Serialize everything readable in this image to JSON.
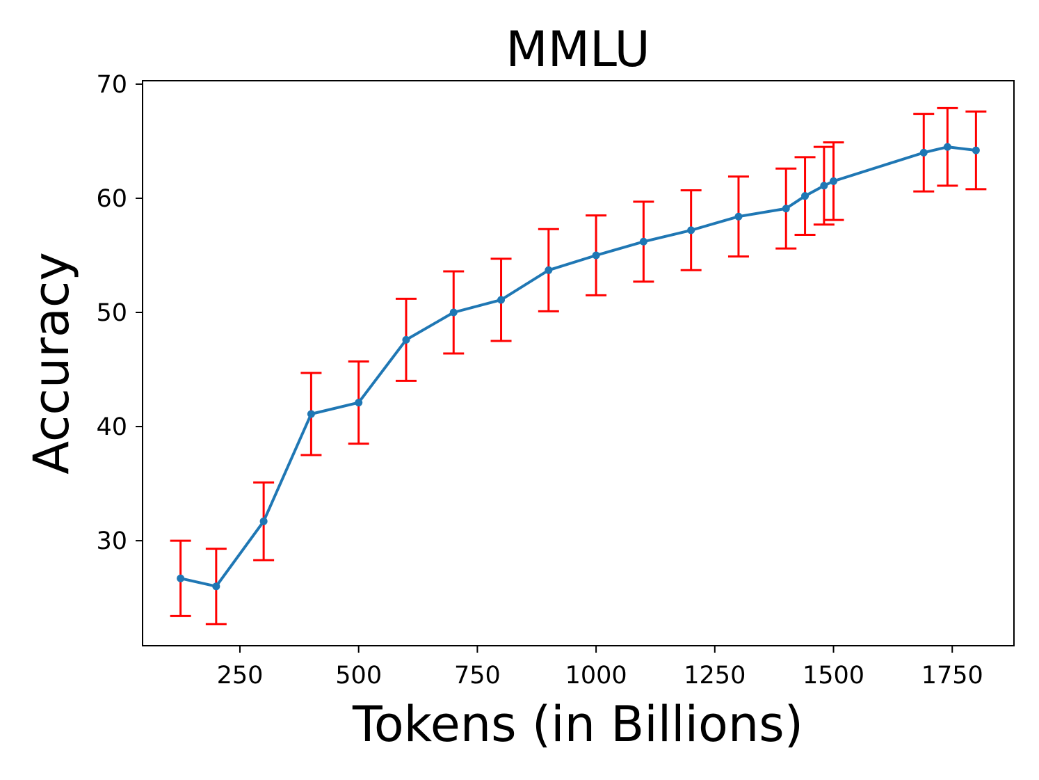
{
  "chart_data": {
    "type": "line",
    "title": "MMLU",
    "xlabel": "Tokens (in Billions)",
    "ylabel": "Accuracy",
    "xlim": [
      45,
      1880
    ],
    "ylim": [
      20.8,
      70.3
    ],
    "xticks": [
      250,
      500,
      750,
      1000,
      1250,
      1500,
      1750
    ],
    "yticks": [
      30,
      40,
      50,
      60,
      70
    ],
    "grid": false,
    "line_color": "#1f77b4",
    "error_color": "#ff0000",
    "series": [
      {
        "x": [
          125,
          200,
          300,
          400,
          500,
          600,
          700,
          800,
          900,
          1000,
          1100,
          1200,
          1300,
          1400,
          1440,
          1480,
          1500,
          1690,
          1740,
          1800
        ],
        "y": [
          26.7,
          26.0,
          31.7,
          41.1,
          42.1,
          47.6,
          50.0,
          51.1,
          53.7,
          55.0,
          56.2,
          57.2,
          58.4,
          59.1,
          60.2,
          61.1,
          61.5,
          64.0,
          64.5,
          64.2
        ],
        "error": [
          3.3,
          3.3,
          3.4,
          3.6,
          3.6,
          3.6,
          3.6,
          3.6,
          3.6,
          3.5,
          3.5,
          3.5,
          3.5,
          3.5,
          3.4,
          3.4,
          3.4,
          3.4,
          3.4,
          3.4
        ]
      }
    ]
  }
}
